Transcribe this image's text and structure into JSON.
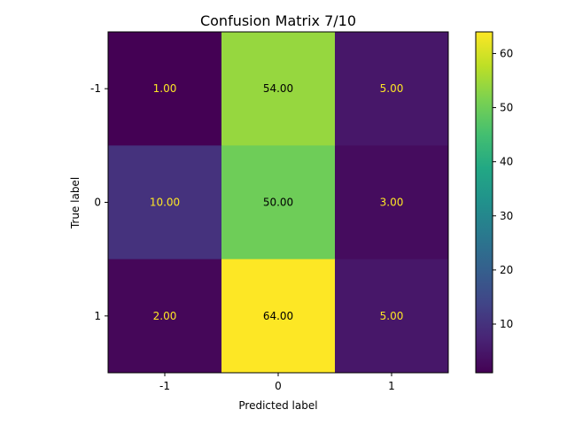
{
  "chart_data": {
    "type": "heatmap",
    "title": "Confusion Matrix 7/10",
    "xlabel": "Predicted label",
    "ylabel": "True label",
    "x_categories": [
      "-1",
      "0",
      "1"
    ],
    "y_categories": [
      "-1",
      "0",
      "1"
    ],
    "values": [
      [
        1,
        54,
        5
      ],
      [
        10,
        50,
        3
      ],
      [
        2,
        64,
        5
      ]
    ],
    "cell_labels": [
      [
        "1.00",
        "54.00",
        "5.00"
      ],
      [
        "10.00",
        "50.00",
        "3.00"
      ],
      [
        "2.00",
        "64.00",
        "5.00"
      ]
    ],
    "colormap": "viridis",
    "color_range": [
      1,
      64
    ],
    "colorbar_ticks": [
      10,
      20,
      30,
      40,
      50,
      60
    ],
    "grid": false,
    "text_colors": {
      "on_dark": "#fde725",
      "on_light": "#000000"
    }
  }
}
